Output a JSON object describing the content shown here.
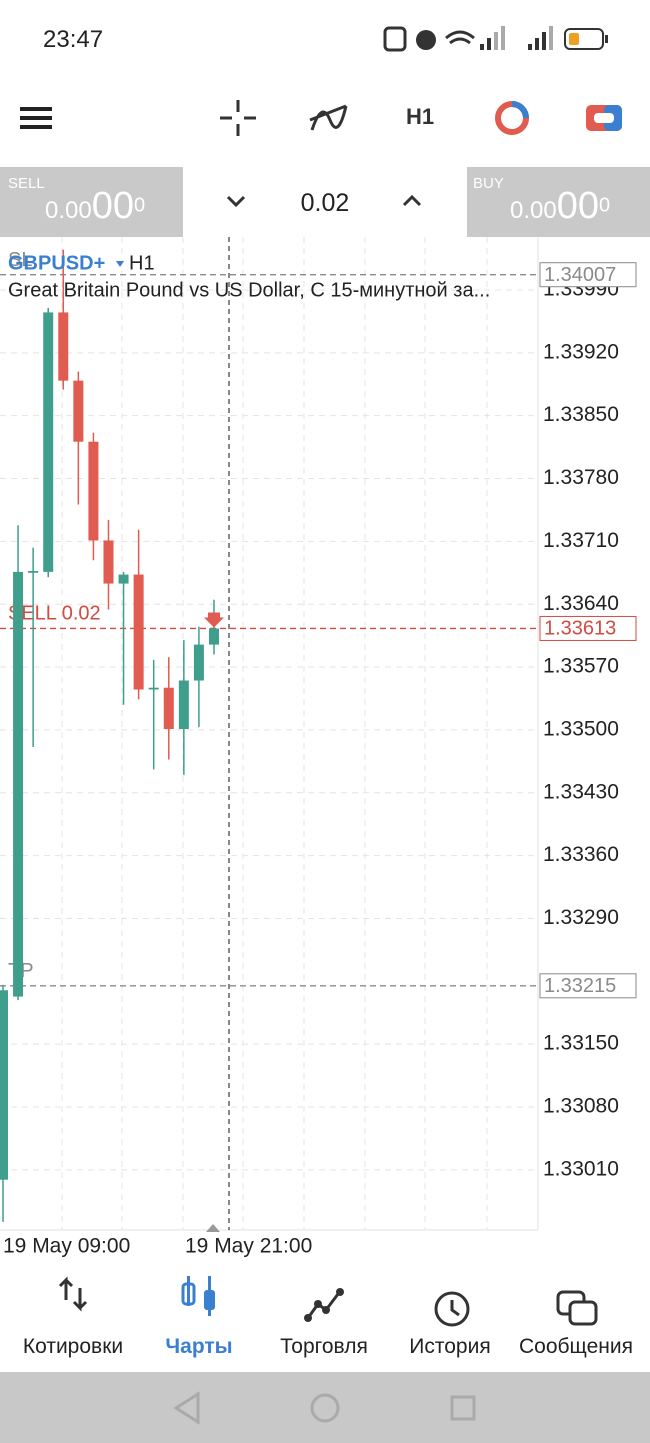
{
  "status_bar": {
    "time": "23:47"
  },
  "toolbar": {
    "timeframe": "H1"
  },
  "trade_panel": {
    "sell": {
      "label": "SELL",
      "price": "0.00",
      "big": "00",
      "sup": "0"
    },
    "volume": "0.02",
    "buy": {
      "label": "BUY",
      "price": "0.00",
      "big": "00",
      "sup": "0"
    }
  },
  "chart_data": {
    "type": "candlestick",
    "symbol": "GBPUSD+",
    "timeframe": "H1",
    "description": "Great Britain Pound vs US Dollar, С 15-минутной за...",
    "up_color": "#3f9e8c",
    "down_color": "#e05b50",
    "open": [
      1.32999,
      1.33203,
      1.33675,
      1.33676,
      1.33965,
      1.33889,
      1.33821,
      1.33711,
      1.33663,
      1.33673,
      1.33545,
      1.33547,
      1.33501,
      1.33555,
      1.33595
    ],
    "high": [
      1.33216,
      1.33728,
      1.33703,
      1.3397,
      1.34035,
      1.33899,
      1.33831,
      1.33734,
      1.33676,
      1.33723,
      1.33578,
      1.33581,
      1.336,
      1.33615,
      1.33645
    ],
    "low": [
      1.32952,
      1.33199,
      1.33481,
      1.3367,
      1.33879,
      1.33751,
      1.33689,
      1.33634,
      1.33528,
      1.33534,
      1.33456,
      1.33467,
      1.3345,
      1.33503,
      1.33584
    ],
    "close": [
      1.3321,
      1.33676,
      1.33677,
      1.33965,
      1.33889,
      1.33821,
      1.33711,
      1.33663,
      1.33673,
      1.33545,
      1.33547,
      1.33501,
      1.33555,
      1.33595,
      1.33613
    ],
    "ylim": [
      1.32943,
      1.34049
    ],
    "yticks": [
      {
        "value": 1.3399,
        "label": "1.33990"
      },
      {
        "value": 1.3392,
        "label": "1.33920"
      },
      {
        "value": 1.3385,
        "label": "1.33850"
      },
      {
        "value": 1.3378,
        "label": "1.33780"
      },
      {
        "value": 1.3371,
        "label": "1.33710"
      },
      {
        "value": 1.3364,
        "label": "1.33640"
      },
      {
        "value": 1.3357,
        "label": "1.33570"
      },
      {
        "value": 1.335,
        "label": "1.33500"
      },
      {
        "value": 1.3343,
        "label": "1.33430"
      },
      {
        "value": 1.3336,
        "label": "1.33360"
      },
      {
        "value": 1.3329,
        "label": "1.33290"
      },
      {
        "value": 1.3315,
        "label": "1.33150"
      },
      {
        "value": 1.3308,
        "label": "1.33080"
      },
      {
        "value": 1.3301,
        "label": "1.33010"
      }
    ],
    "grid": true,
    "x_labels": [
      "19 May 09:00",
      "19 May 21:00"
    ],
    "price_lines": [
      {
        "label": "SL",
        "value": 1.34007,
        "color": "#8a8a8a"
      },
      {
        "label": "SELL 0.02",
        "value": 1.33613,
        "color": "#d24a40"
      },
      {
        "label": "TP",
        "value": 1.33215,
        "color": "#8a8a8a"
      }
    ]
  },
  "bottom_nav": {
    "items": [
      "Котировки",
      "Чарты",
      "Торговля",
      "История",
      "Сообщения"
    ]
  }
}
